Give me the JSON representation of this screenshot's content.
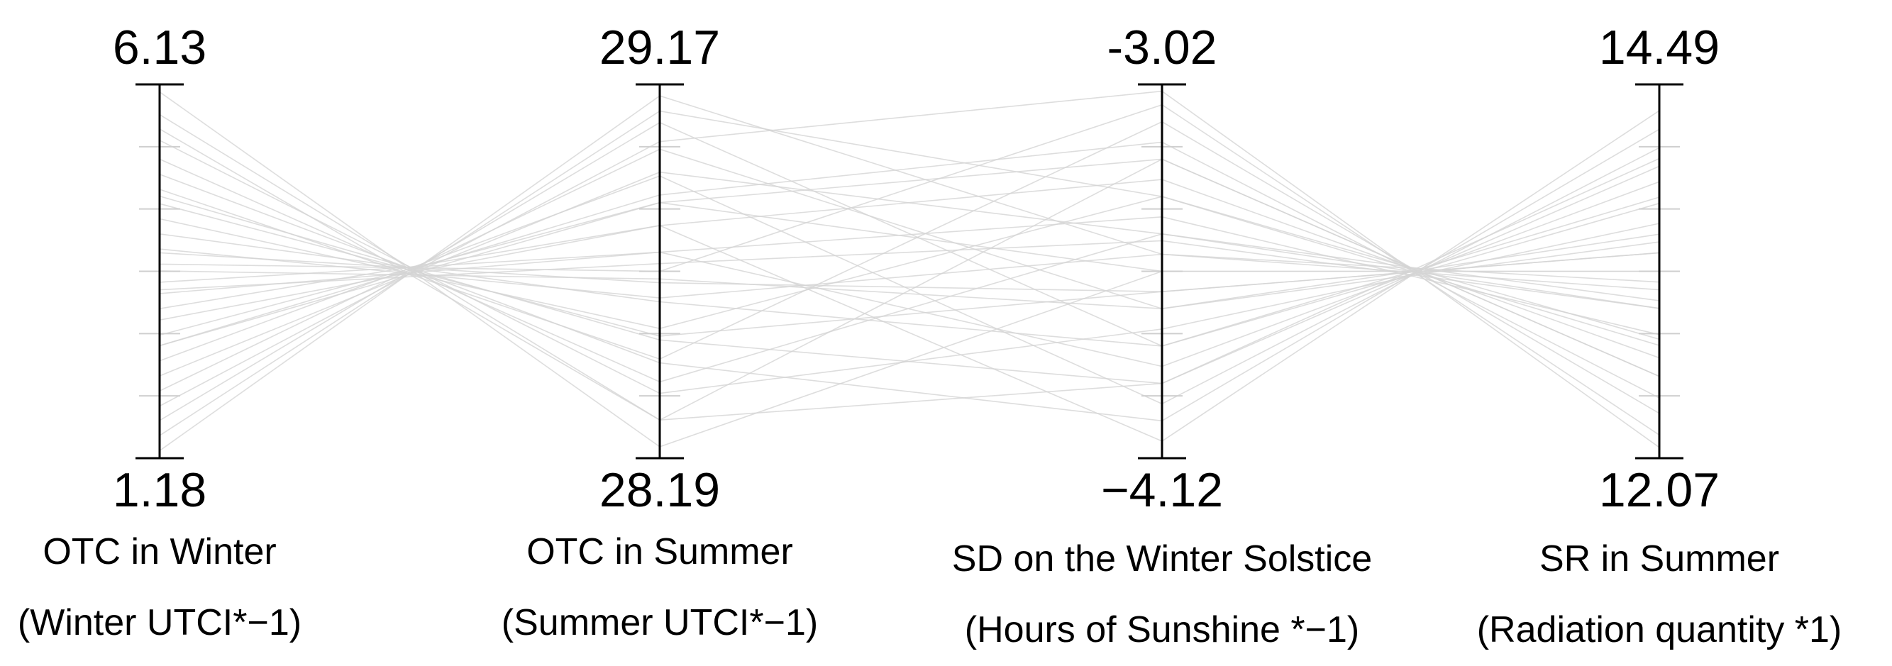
{
  "chart_data": {
    "type": "parallel",
    "line_color": "#d4d4d4",
    "axis_color": "#000000",
    "axes": [
      {
        "title": "OTC in Winter",
        "subtitle": "(Winter UTCI*−1)",
        "ylim": [
          1.18,
          6.13
        ]
      },
      {
        "title": "OTC in Summer",
        "subtitle": "(Summer UTCI*−1)",
        "ylim": [
          28.19,
          29.17
        ]
      },
      {
        "title": "SD on the Winter Solstice",
        "subtitle": "(Hours of Sunshine *−1)",
        "ylim": [
          {
            "value": -4.12,
            "label": "−4.12"
          },
          -3.02
        ]
      },
      {
        "title": "SR in Summer",
        "subtitle": "(Radiation quantity *1)",
        "ylim": [
          12.07,
          14.49
        ]
      }
    ],
    "lines": [
      [
        6.03,
        28.22,
        -3.57,
        13.28
      ],
      [
        5.73,
        28.29,
        -3.9,
        13.96
      ],
      [
        5.54,
        28.29,
        -3.24,
        12.6
      ],
      [
        5.39,
        28.36,
        -3.74,
        13.59
      ],
      [
        5.14,
        28.39,
        -3.46,
        13.09
      ],
      [
        4.94,
        28.44,
        -4.01,
        14.2
      ],
      [
        4.74,
        28.45,
        -3.13,
        12.36
      ],
      [
        4.55,
        28.51,
        -3.63,
        13.4
      ],
      [
        4.35,
        28.53,
        -3.35,
        12.8
      ],
      [
        4.15,
        28.6,
        -3.79,
        13.72
      ],
      [
        3.95,
        28.61,
        -3.52,
        13.21
      ],
      [
        3.75,
        28.68,
        -3.08,
        12.22
      ],
      [
        3.66,
        28.66,
        -3.68,
        13.52
      ],
      [
        3.51,
        28.73,
        -3.41,
        12.87
      ],
      [
        3.36,
        28.73,
        -3.85,
        13.86
      ],
      [
        3.16,
        28.8,
        -3.3,
        12.72
      ],
      [
        3.01,
        28.8,
        -4.07,
        14.32
      ],
      [
        2.81,
        28.86,
        -3.57,
        13.28
      ],
      [
        2.67,
        28.88,
        -3.19,
        12.46
      ],
      [
        2.47,
        28.93,
        -3.96,
        14.08
      ],
      [
        2.27,
        28.94,
        -3.46,
        13.04
      ],
      [
        2.07,
        29.0,
        -3.68,
        13.47
      ],
      [
        1.87,
        29.02,
        -3.04,
        12.14
      ],
      [
        1.68,
        29.07,
        -3.79,
        13.76
      ],
      [
        1.48,
        29.1,
        -3.35,
        12.84
      ],
      [
        1.28,
        29.14,
        -3.52,
        13.16
      ],
      [
        3.9,
        28.65,
        -3.63,
        13.4
      ],
      [
        3.41,
        28.7,
        -3.48,
        13.04
      ],
      [
        4.65,
        28.5,
        -3.9,
        14.01
      ],
      [
        2.67,
        28.86,
        -3.24,
        12.6
      ]
    ]
  }
}
